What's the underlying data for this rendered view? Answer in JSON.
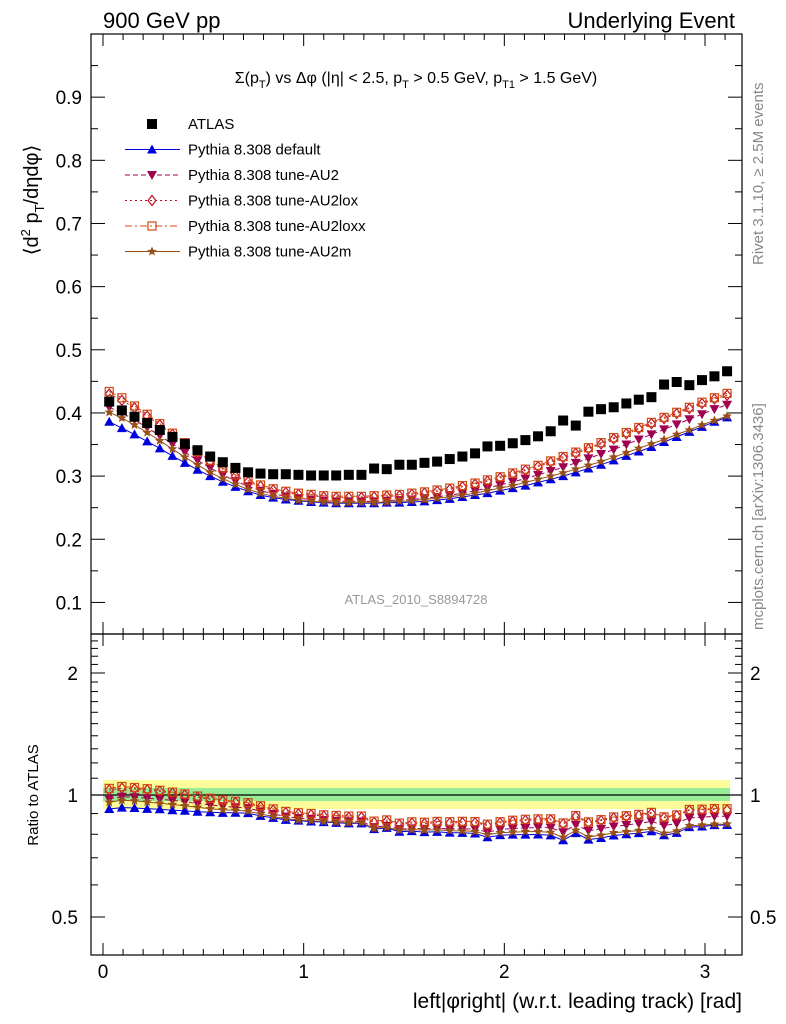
{
  "header": {
    "left": "900 GeV pp",
    "right": "Underlying Event"
  },
  "side": {
    "rivet": "Rivet 3.1.10, ≥ 2.5M events",
    "mcplots": "mcplots.cern.ch [arXiv:1306.3436]"
  },
  "chart_data": {
    "type": "scatter",
    "title": "Σ(p_T) vs Δφ (|η| < 2.5, p_T > 0.5 GeV, p_T1 > 1.5 GeV)",
    "watermark": "ATLAS_2010_S8894728",
    "xlabel": "left|φright| (w.r.t. leading track) [rad]",
    "ylabel": "⟨d² p_T/dηdφ⟩",
    "ratio_ylabel": "Ratio to ATLAS",
    "xlim": [
      -0.06,
      3.2
    ],
    "ylim": [
      0.05,
      1.0
    ],
    "ratio_ylim": [
      0.4,
      2.5
    ],
    "x_ticks": [
      0,
      1,
      2,
      3
    ],
    "y_ticks": [
      0.1,
      0.2,
      0.3,
      0.4,
      0.5,
      0.6,
      0.7,
      0.8,
      0.9
    ],
    "ratio_ticks": [
      0.5,
      1,
      2
    ],
    "grid": false,
    "legend_position": "top-left",
    "x": [
      0.031,
      0.094,
      0.157,
      0.22,
      0.283,
      0.346,
      0.408,
      0.471,
      0.534,
      0.597,
      0.66,
      0.723,
      0.785,
      0.848,
      0.911,
      0.974,
      1.037,
      1.1,
      1.162,
      1.225,
      1.288,
      1.351,
      1.414,
      1.477,
      1.539,
      1.602,
      1.665,
      1.728,
      1.791,
      1.854,
      1.916,
      1.979,
      2.042,
      2.105,
      2.168,
      2.231,
      2.293,
      2.356,
      2.419,
      2.482,
      2.545,
      2.608,
      2.67,
      2.733,
      2.796,
      2.859,
      2.922,
      2.985,
      3.047,
      3.11
    ],
    "series": [
      {
        "name": "ATLAS",
        "color": "#000000",
        "marker": "square",
        "line": "none",
        "values": [
          0.418,
          0.404,
          0.394,
          0.384,
          0.373,
          0.362,
          0.351,
          0.341,
          0.331,
          0.322,
          0.313,
          0.306,
          0.304,
          0.303,
          0.303,
          0.302,
          0.301,
          0.301,
          0.301,
          0.302,
          0.302,
          0.312,
          0.311,
          0.318,
          0.318,
          0.321,
          0.323,
          0.327,
          0.331,
          0.336,
          0.347,
          0.348,
          0.352,
          0.357,
          0.363,
          0.371,
          0.388,
          0.38,
          0.402,
          0.406,
          0.409,
          0.415,
          0.421,
          0.425,
          0.445,
          0.449,
          0.444,
          0.452,
          0.458,
          0.466
        ]
      },
      {
        "name": "Pythia 8.308 default",
        "color": "#0000dd",
        "marker": "triangle-up",
        "line": "solid",
        "values": [
          0.386,
          0.376,
          0.366,
          0.355,
          0.344,
          0.332,
          0.321,
          0.31,
          0.3,
          0.291,
          0.283,
          0.276,
          0.27,
          0.266,
          0.263,
          0.261,
          0.259,
          0.258,
          0.257,
          0.257,
          0.257,
          0.257,
          0.258,
          0.258,
          0.259,
          0.26,
          0.262,
          0.264,
          0.267,
          0.27,
          0.273,
          0.277,
          0.281,
          0.285,
          0.29,
          0.295,
          0.3,
          0.306,
          0.312,
          0.318,
          0.325,
          0.332,
          0.339,
          0.346,
          0.354,
          0.362,
          0.37,
          0.378,
          0.386,
          0.393
        ]
      },
      {
        "name": "Pythia 8.308 tune-AU2",
        "color": "#a00050",
        "marker": "triangle-down",
        "line": "dashed",
        "values": [
          0.409,
          0.4,
          0.389,
          0.377,
          0.364,
          0.351,
          0.338,
          0.325,
          0.313,
          0.302,
          0.292,
          0.284,
          0.277,
          0.272,
          0.268,
          0.265,
          0.263,
          0.261,
          0.26,
          0.26,
          0.26,
          0.26,
          0.261,
          0.262,
          0.263,
          0.265,
          0.267,
          0.27,
          0.273,
          0.277,
          0.281,
          0.286,
          0.291,
          0.296,
          0.302,
          0.308,
          0.314,
          0.321,
          0.328,
          0.335,
          0.342,
          0.35,
          0.358,
          0.366,
          0.374,
          0.382,
          0.39,
          0.398,
          0.406,
          0.413
        ]
      },
      {
        "name": "Pythia 8.308 tune-AU2lox",
        "color": "#c0102a",
        "marker": "diamond-open",
        "line": "dotted",
        "values": [
          0.43,
          0.42,
          0.408,
          0.395,
          0.381,
          0.366,
          0.351,
          0.337,
          0.323,
          0.311,
          0.3,
          0.291,
          0.284,
          0.278,
          0.274,
          0.271,
          0.269,
          0.267,
          0.266,
          0.266,
          0.266,
          0.267,
          0.268,
          0.269,
          0.271,
          0.273,
          0.276,
          0.279,
          0.283,
          0.287,
          0.292,
          0.297,
          0.303,
          0.309,
          0.315,
          0.322,
          0.329,
          0.336,
          0.343,
          0.351,
          0.359,
          0.367,
          0.375,
          0.383,
          0.391,
          0.399,
          0.407,
          0.415,
          0.422,
          0.428
        ]
      },
      {
        "name": "Pythia 8.308 tune-AU2loxx",
        "color": "#d04a10",
        "marker": "square-open",
        "line": "dashdot",
        "values": [
          0.434,
          0.424,
          0.411,
          0.398,
          0.383,
          0.368,
          0.353,
          0.339,
          0.325,
          0.313,
          0.302,
          0.293,
          0.286,
          0.28,
          0.276,
          0.273,
          0.271,
          0.269,
          0.268,
          0.268,
          0.268,
          0.269,
          0.27,
          0.271,
          0.273,
          0.275,
          0.278,
          0.281,
          0.285,
          0.289,
          0.294,
          0.299,
          0.305,
          0.311,
          0.317,
          0.324,
          0.331,
          0.338,
          0.345,
          0.353,
          0.361,
          0.369,
          0.377,
          0.385,
          0.393,
          0.401,
          0.409,
          0.417,
          0.424,
          0.431
        ]
      },
      {
        "name": "Pythia 8.308 tune-AU2m",
        "color": "#995018",
        "marker": "star",
        "line": "solid",
        "values": [
          0.401,
          0.392,
          0.381,
          0.369,
          0.356,
          0.343,
          0.33,
          0.318,
          0.306,
          0.296,
          0.287,
          0.279,
          0.273,
          0.268,
          0.265,
          0.262,
          0.26,
          0.259,
          0.258,
          0.258,
          0.258,
          0.258,
          0.259,
          0.26,
          0.261,
          0.263,
          0.265,
          0.267,
          0.27,
          0.273,
          0.277,
          0.281,
          0.285,
          0.29,
          0.295,
          0.3,
          0.305,
          0.311,
          0.317,
          0.323,
          0.33,
          0.337,
          0.344,
          0.351,
          0.358,
          0.366,
          0.373,
          0.381,
          0.388,
          0.395
        ]
      }
    ]
  }
}
